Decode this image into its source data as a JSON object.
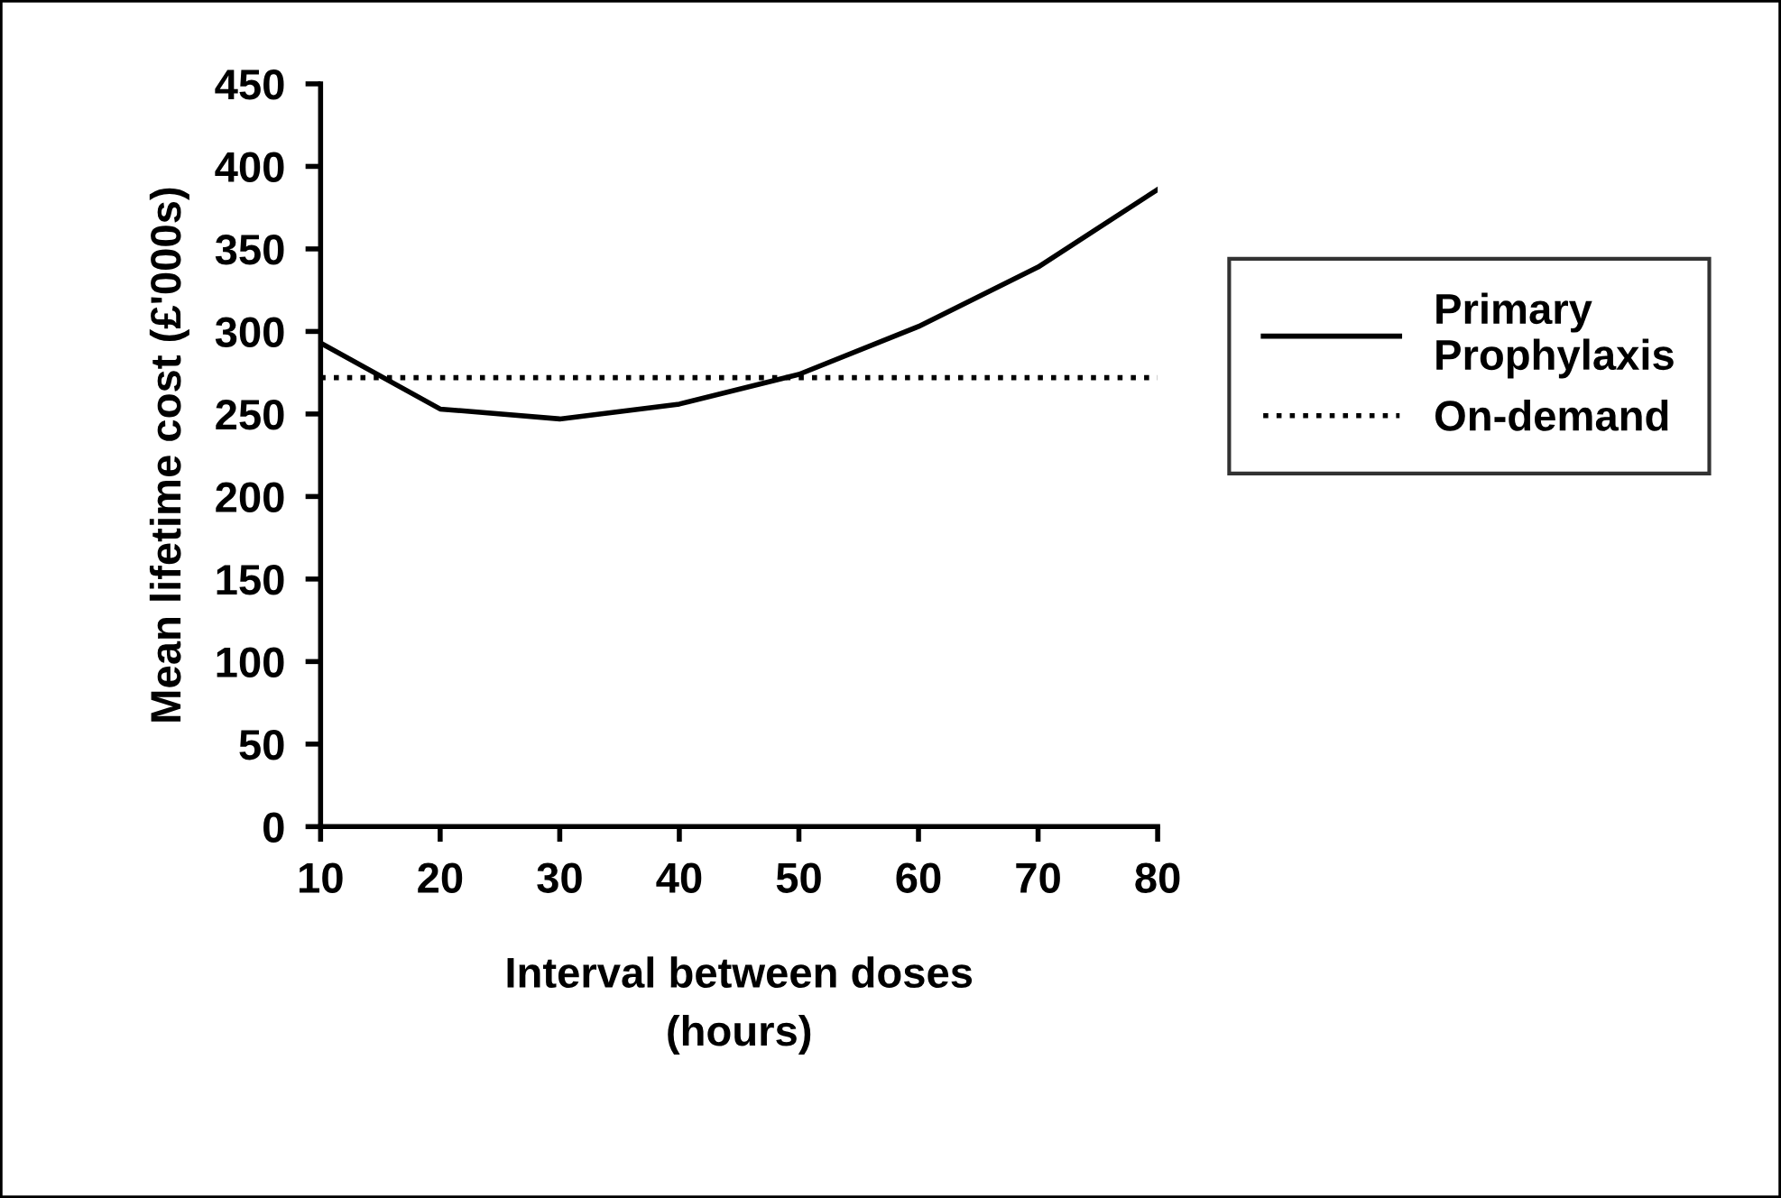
{
  "chart_data": {
    "type": "line",
    "xlabel": "Interval between doses\n(hours)",
    "ylabel": "Mean lifetime cost (£'000s)",
    "x": [
      10,
      20,
      30,
      40,
      50,
      60,
      70,
      80
    ],
    "series": [
      {
        "name": "Primary\nProphylaxis",
        "color": "#000000",
        "line_style": "solid",
        "values": [
          293,
          253,
          247,
          256,
          274,
          303,
          339,
          386
        ]
      },
      {
        "name": "On-demand",
        "color": "#000000",
        "line_style": "dotted",
        "values": [
          272,
          272,
          272,
          272,
          272,
          272,
          272,
          272
        ]
      }
    ],
    "xlim": [
      10,
      80
    ],
    "xticks": [
      10,
      20,
      30,
      40,
      50,
      60,
      70,
      80
    ],
    "ylim": [
      0,
      450
    ],
    "yticks": [
      0,
      50,
      100,
      150,
      200,
      250,
      300,
      350,
      400,
      450
    ],
    "grid": false,
    "legend": "right",
    "marker": "none"
  }
}
